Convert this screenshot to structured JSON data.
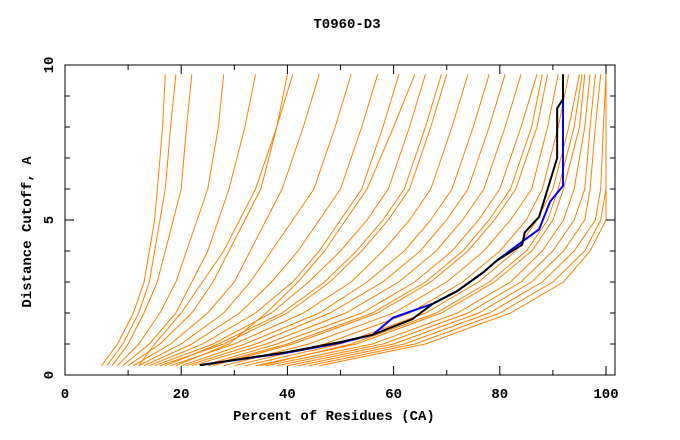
{
  "chart_data": {
    "type": "line",
    "title": "T0960-D3",
    "xlabel": "Percent of Residues (CA)",
    "ylabel": "Distance Cutoff, A",
    "xlim": [
      0,
      100
    ],
    "ylim": [
      0,
      10
    ],
    "x_ticks": [
      "0",
      "20",
      "40",
      "60",
      "80",
      "100"
    ],
    "y_ticks": [
      "0",
      "5",
      "10"
    ],
    "grid": false,
    "colors": {
      "models": "#ff8000",
      "highlight_blue": "#0000ff",
      "highlight_black": "#000000"
    },
    "model_y_levels": [
      0.3,
      1,
      2,
      3,
      4,
      5,
      6,
      8,
      9.7
    ],
    "model_series_x": [
      [
        5,
        8,
        11,
        13,
        14,
        15,
        15.5,
        16.5,
        17
      ],
      [
        6,
        9,
        12,
        14,
        15,
        16,
        17,
        18,
        19
      ],
      [
        7,
        10,
        13,
        15.5,
        17,
        18.5,
        20,
        21,
        22
      ],
      [
        8,
        12,
        16,
        19,
        21,
        23,
        25,
        27,
        28
      ],
      [
        9,
        14,
        19,
        22,
        25,
        27,
        29,
        32,
        34
      ],
      [
        10,
        16,
        22,
        26,
        29,
        32,
        35,
        38,
        40
      ],
      [
        11,
        18,
        25,
        30,
        33,
        36,
        39,
        43,
        46
      ],
      [
        12,
        20,
        28,
        33,
        37,
        41,
        45,
        49,
        52
      ],
      [
        13,
        22,
        31,
        37,
        42,
        46,
        50,
        54,
        57
      ],
      [
        14,
        24,
        34,
        41,
        46,
        50,
        54,
        58,
        61
      ],
      [
        15,
        26,
        37,
        44,
        50,
        55,
        59,
        63,
        66
      ],
      [
        16,
        28,
        40,
        48,
        54,
        59,
        63,
        67,
        70
      ],
      [
        18,
        30,
        43,
        52,
        58,
        63,
        67,
        71,
        74
      ],
      [
        20,
        32,
        46,
        55,
        62,
        67,
        71,
        75,
        78
      ],
      [
        21,
        34,
        48,
        58,
        65,
        70,
        74,
        78,
        81
      ],
      [
        22,
        36,
        51,
        61,
        68,
        73,
        77,
        81,
        84
      ],
      [
        24,
        38,
        54,
        64,
        71,
        76,
        80,
        84,
        87
      ],
      [
        26,
        41,
        57,
        67,
        74,
        79,
        83,
        87,
        89
      ],
      [
        28,
        44,
        60,
        70,
        77,
        82,
        86,
        89,
        91
      ],
      [
        30,
        47,
        63,
        73,
        80,
        85,
        88,
        91,
        93
      ],
      [
        32,
        50,
        66,
        76,
        83,
        87,
        90,
        93,
        95
      ],
      [
        34,
        53,
        69,
        79,
        86,
        90,
        92,
        95,
        96
      ],
      [
        36,
        56,
        72,
        82,
        88,
        92,
        94,
        96,
        97
      ],
      [
        38,
        58,
        74,
        84,
        90,
        94,
        96,
        97,
        98
      ],
      [
        40,
        60,
        76,
        86,
        92,
        96,
        97,
        98,
        99
      ],
      [
        42,
        62,
        78,
        88,
        94,
        98,
        99,
        99.5,
        100
      ],
      [
        44,
        64,
        80,
        90,
        96,
        99,
        100,
        100,
        100
      ],
      [
        46,
        66,
        82,
        92,
        97,
        100,
        100,
        100,
        100
      ],
      [
        35,
        52,
        68,
        78,
        85,
        89,
        91,
        94,
        95.5
      ],
      [
        25,
        40,
        56,
        66,
        73,
        78,
        82,
        86,
        88
      ],
      [
        17,
        27,
        39,
        47,
        53,
        58,
        62,
        66,
        69
      ],
      [
        19,
        29,
        36,
        42,
        47,
        51,
        55,
        60,
        64
      ],
      [
        12,
        15,
        20,
        24,
        28,
        31,
        34,
        38,
        41
      ]
    ],
    "highlight_series": [
      {
        "name": "blue",
        "points": [
          [
            23.5,
            0.32
          ],
          [
            40,
            0.72
          ],
          [
            50,
            1.04
          ],
          [
            56.1,
            1.3
          ],
          [
            59.9,
            1.85
          ],
          [
            67.4,
            2.3
          ],
          [
            71.9,
            2.7
          ],
          [
            76.8,
            3.3
          ],
          [
            79.5,
            3.7
          ],
          [
            84.2,
            4.3
          ],
          [
            87.4,
            4.7
          ],
          [
            89.5,
            5.6
          ],
          [
            91.9,
            6.1
          ],
          [
            91.9,
            9.0
          ]
        ]
      },
      {
        "name": "black",
        "points": [
          [
            23.5,
            0.32
          ],
          [
            40,
            0.74
          ],
          [
            49.9,
            1.06
          ],
          [
            56.1,
            1.3
          ],
          [
            63.5,
            1.8
          ],
          [
            67.4,
            2.3
          ],
          [
            71.9,
            2.7
          ],
          [
            76.8,
            3.3
          ],
          [
            79.5,
            3.7
          ],
          [
            84.2,
            4.2
          ],
          [
            84.7,
            4.6
          ],
          [
            87.4,
            5.1
          ],
          [
            90.8,
            7.0
          ],
          [
            90.8,
            8.6
          ],
          [
            91.9,
            8.9
          ],
          [
            91.9,
            9.7
          ]
        ]
      }
    ]
  }
}
